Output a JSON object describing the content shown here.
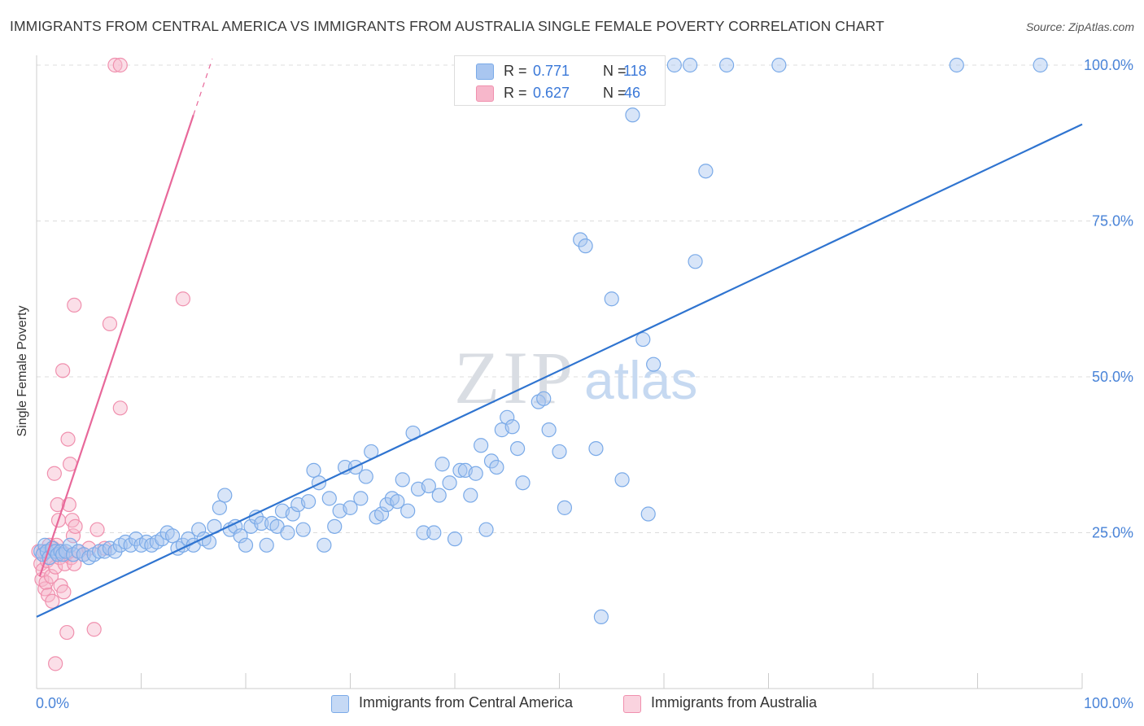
{
  "title": "IMMIGRANTS FROM CENTRAL AMERICA VS IMMIGRANTS FROM AUSTRALIA SINGLE FEMALE POVERTY CORRELATION CHART",
  "source": "Source: ZipAtlas.com",
  "watermark": {
    "zip": "ZIP",
    "atlas": "atlas"
  },
  "legend": {
    "r_label": "R =",
    "n_label": "N =",
    "series": [
      {
        "name": "Immigrants from Central America",
        "r": "0.771",
        "n": "118",
        "color": "#7aaae8",
        "fill": "#a9c6f0"
      },
      {
        "name": "Immigrants from Australia",
        "r": "0.627",
        "n": "46",
        "color": "#f090ae",
        "fill": "#f7b7cb"
      }
    ]
  },
  "chart_data": {
    "type": "scatter",
    "title": "IMMIGRANTS FROM CENTRAL AMERICA VS IMMIGRANTS FROM AUSTRALIA SINGLE FEMALE POVERTY CORRELATION CHART",
    "xlabel": "",
    "ylabel": "Single Female Poverty",
    "xlim": [
      0,
      100
    ],
    "ylim": [
      0,
      104
    ],
    "x_tick_labels": [
      "0.0%",
      "100.0%"
    ],
    "y_ticks": [
      25,
      50,
      75,
      100
    ],
    "y_tick_labels": [
      "25.0%",
      "50.0%",
      "75.0%",
      "100.0%"
    ],
    "grid": true,
    "series": [
      {
        "name": "Immigrants from Central America",
        "color": "#7aaae8",
        "fill": "#a9c6f0",
        "trend_color": "#2f74d0",
        "trend": {
          "x": [
            0,
            100
          ],
          "y": [
            11.5,
            90.5
          ]
        },
        "points": [
          [
            0.4,
            22
          ],
          [
            0.6,
            21.5
          ],
          [
            0.8,
            23
          ],
          [
            1,
            22
          ],
          [
            1.2,
            21
          ],
          [
            1.5,
            22.5
          ],
          [
            1.8,
            22
          ],
          [
            2,
            21.5
          ],
          [
            2.3,
            22
          ],
          [
            2.5,
            21.5
          ],
          [
            2.8,
            22
          ],
          [
            3.2,
            23
          ],
          [
            3.5,
            21.5
          ],
          [
            4,
            22
          ],
          [
            4.5,
            21.5
          ],
          [
            5,
            21
          ],
          [
            5.5,
            21.5
          ],
          [
            6,
            22
          ],
          [
            6.5,
            22
          ],
          [
            7,
            22.5
          ],
          [
            7.5,
            22
          ],
          [
            8,
            23
          ],
          [
            8.5,
            23.5
          ],
          [
            9,
            23
          ],
          [
            9.5,
            24
          ],
          [
            10,
            23
          ],
          [
            10.5,
            23.5
          ],
          [
            11,
            23
          ],
          [
            11.5,
            23.5
          ],
          [
            12,
            24
          ],
          [
            12.5,
            25
          ],
          [
            13,
            24.5
          ],
          [
            13.5,
            22.5
          ],
          [
            14,
            23
          ],
          [
            14.5,
            24
          ],
          [
            15,
            23
          ],
          [
            15.5,
            25.5
          ],
          [
            16,
            24
          ],
          [
            16.5,
            23.5
          ],
          [
            17,
            26
          ],
          [
            17.5,
            29
          ],
          [
            18,
            31
          ],
          [
            18.5,
            25.5
          ],
          [
            19,
            26
          ],
          [
            19.5,
            24.5
          ],
          [
            20,
            23
          ],
          [
            20.5,
            26
          ],
          [
            21,
            27.5
          ],
          [
            21.5,
            26.5
          ],
          [
            22,
            23
          ],
          [
            22.5,
            26.5
          ],
          [
            23,
            26
          ],
          [
            23.5,
            28.5
          ],
          [
            24,
            25
          ],
          [
            24.5,
            28
          ],
          [
            25,
            29.5
          ],
          [
            25.5,
            25.5
          ],
          [
            26,
            30
          ],
          [
            26.5,
            35
          ],
          [
            27,
            33
          ],
          [
            27.5,
            23
          ],
          [
            28,
            30.5
          ],
          [
            28.5,
            26
          ],
          [
            29,
            28.5
          ],
          [
            29.5,
            35.5
          ],
          [
            30,
            29
          ],
          [
            30.5,
            35.5
          ],
          [
            31,
            30.5
          ],
          [
            31.5,
            34
          ],
          [
            32,
            38
          ],
          [
            32.5,
            27.5
          ],
          [
            33,
            28
          ],
          [
            33.5,
            29.5
          ],
          [
            34,
            30.5
          ],
          [
            34.5,
            30
          ],
          [
            35,
            33.5
          ],
          [
            35.5,
            28.5
          ],
          [
            36,
            41
          ],
          [
            36.5,
            32
          ],
          [
            37,
            25
          ],
          [
            37.5,
            32.5
          ],
          [
            38,
            25
          ],
          [
            38.5,
            31
          ],
          [
            38.8,
            36
          ],
          [
            39.5,
            33
          ],
          [
            40,
            24
          ],
          [
            40.5,
            35
          ],
          [
            41,
            35
          ],
          [
            41.5,
            31
          ],
          [
            42,
            34.5
          ],
          [
            42.5,
            39
          ],
          [
            43,
            25.5
          ],
          [
            43.5,
            36.5
          ],
          [
            44,
            35.5
          ],
          [
            44.5,
            41.5
          ],
          [
            45,
            43.5
          ],
          [
            45.5,
            42
          ],
          [
            46,
            38.5
          ],
          [
            46.5,
            33
          ],
          [
            48,
            46
          ],
          [
            48.5,
            46.5
          ],
          [
            49,
            41.5
          ],
          [
            50,
            38
          ],
          [
            50.5,
            29
          ],
          [
            52,
            72
          ],
          [
            52.5,
            71
          ],
          [
            53.5,
            38.5
          ],
          [
            54,
            11.5
          ],
          [
            55,
            62.5
          ],
          [
            56,
            33.5
          ],
          [
            57,
            92
          ],
          [
            58,
            56
          ],
          [
            58.5,
            28
          ],
          [
            59,
            52
          ],
          [
            61,
            100
          ],
          [
            62.5,
            100
          ],
          [
            63,
            68.5
          ],
          [
            64,
            83
          ],
          [
            66,
            100
          ],
          [
            71,
            100
          ],
          [
            88,
            100
          ],
          [
            96,
            100
          ]
        ]
      },
      {
        "name": "Immigrants from Australia",
        "color": "#f090ae",
        "fill": "#f7b7cb",
        "trend_color": "#e8689a",
        "trend": {
          "x": [
            0.3,
            15.0
          ],
          "y": [
            18,
            92
          ]
        },
        "trend_dashed": {
          "x": [
            15.0,
            16.8
          ],
          "y": [
            92,
            101
          ]
        },
        "points": [
          [
            0.2,
            22
          ],
          [
            0.4,
            20
          ],
          [
            0.5,
            17.5
          ],
          [
            0.6,
            19
          ],
          [
            0.7,
            22
          ],
          [
            0.8,
            16
          ],
          [
            0.9,
            17
          ],
          [
            1,
            20.5
          ],
          [
            1.1,
            15
          ],
          [
            1.2,
            23
          ],
          [
            1.3,
            21
          ],
          [
            1.4,
            18
          ],
          [
            1.5,
            14
          ],
          [
            1.6,
            22.5
          ],
          [
            1.7,
            34.5
          ],
          [
            1.8,
            19.5
          ],
          [
            1.9,
            23
          ],
          [
            2,
            29.5
          ],
          [
            2.1,
            27
          ],
          [
            2.2,
            21
          ],
          [
            2.3,
            16.5
          ],
          [
            2.4,
            22
          ],
          [
            2.5,
            51
          ],
          [
            2.6,
            15.5
          ],
          [
            2.7,
            20
          ],
          [
            2.8,
            21.5
          ],
          [
            2.9,
            9
          ],
          [
            3,
            40
          ],
          [
            3.1,
            29.5
          ],
          [
            3.2,
            36
          ],
          [
            3.3,
            21
          ],
          [
            3.4,
            27
          ],
          [
            3.5,
            24.5
          ],
          [
            3.6,
            20
          ],
          [
            3.7,
            26
          ],
          [
            4,
            22
          ],
          [
            4.5,
            21.5
          ],
          [
            5,
            22.5
          ],
          [
            5.5,
            9.5
          ],
          [
            5.8,
            25.5
          ],
          [
            6.5,
            22.5
          ],
          [
            7,
            58.5
          ],
          [
            7.5,
            100
          ],
          [
            8,
            100
          ],
          [
            8,
            45
          ],
          [
            14,
            62.5
          ],
          [
            3.6,
            61.5
          ],
          [
            1.8,
            4
          ]
        ]
      }
    ]
  }
}
